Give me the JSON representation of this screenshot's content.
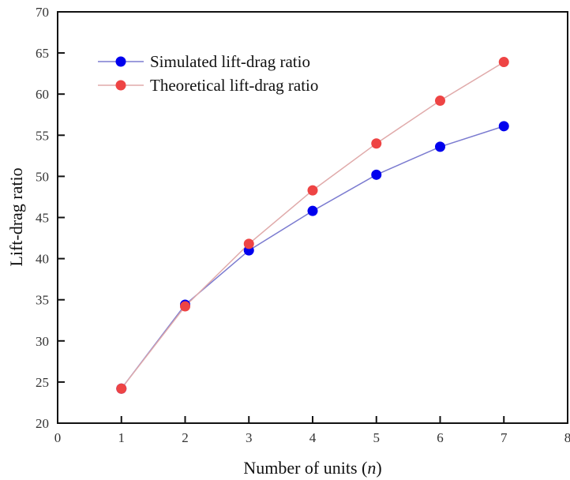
{
  "chart_data": {
    "type": "line",
    "title": "",
    "xlabel": "Number of units (",
    "xlabel_italic": "n",
    "xlabel_suffix": ")",
    "ylabel": "Lift-drag ratio",
    "xlim": [
      0,
      8
    ],
    "ylim": [
      20,
      70
    ],
    "xticks": [
      0,
      1,
      2,
      3,
      4,
      5,
      6,
      7,
      8
    ],
    "yticks": [
      20,
      25,
      30,
      35,
      40,
      45,
      50,
      55,
      60,
      65,
      70
    ],
    "grid": false,
    "legend_position": "top-left",
    "x": [
      1,
      2,
      3,
      4,
      5,
      6,
      7
    ],
    "series": [
      {
        "name": "Simulated lift-drag ratio",
        "values": [
          24.2,
          34.4,
          41.0,
          45.8,
          50.2,
          53.6,
          56.1
        ],
        "marker_color": "#0000ee",
        "line_color": "#7b7bd0"
      },
      {
        "name": "Theoretical lift-drag ratio",
        "values": [
          24.2,
          34.2,
          41.8,
          48.3,
          54.0,
          59.2,
          63.9
        ],
        "marker_color": "#ee4444",
        "line_color": "#e0aaaa"
      }
    ]
  }
}
